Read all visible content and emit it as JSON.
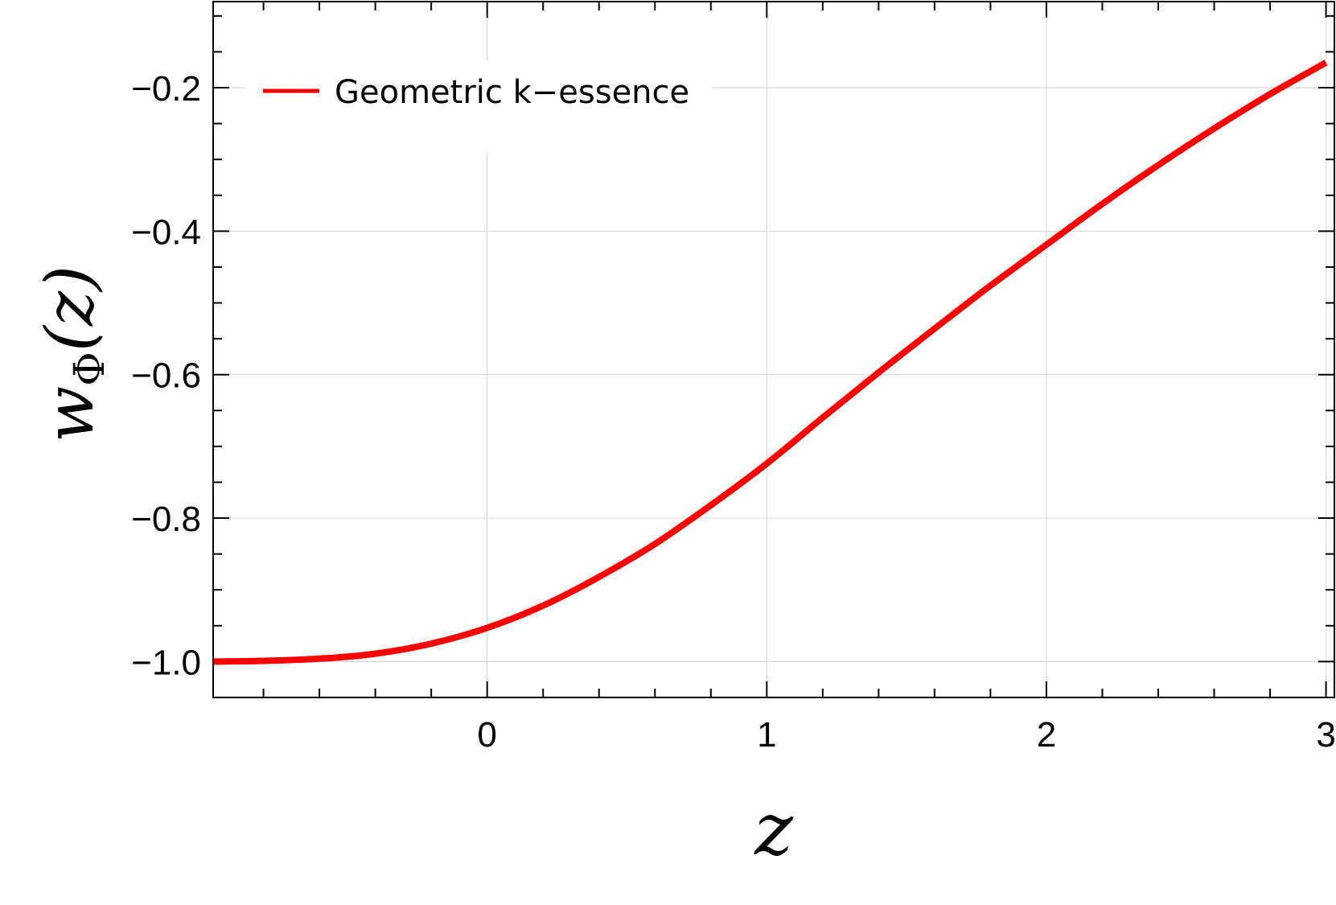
{
  "chart_data": {
    "type": "line",
    "xlabel": "z",
    "ylabel_main": "w",
    "ylabel_sub": "Φ",
    "ylabel_arg": "(z)",
    "xlim": [
      -0.98,
      3.03
    ],
    "ylim": [
      -1.05,
      -0.08
    ],
    "xticks": [
      0,
      1,
      2,
      3
    ],
    "xtick_labels": [
      "0",
      "1",
      "2",
      "3"
    ],
    "yticks": [
      -1.0,
      -0.8,
      -0.6,
      -0.4,
      -0.2
    ],
    "ytick_labels": [
      "−1.0",
      "−0.8",
      "−0.6",
      "−0.4",
      "−0.2"
    ],
    "x_minor_step": 0.2,
    "y_minor_step": 0.05,
    "grid": true,
    "legend_position": "top-left",
    "series": [
      {
        "name": "Geometric k−essence",
        "color": "#ff0000",
        "x": [
          -0.98,
          -0.8,
          -0.6,
          -0.4,
          -0.2,
          0.0,
          0.2,
          0.4,
          0.6,
          0.8,
          1.0,
          1.2,
          1.4,
          1.6,
          1.8,
          2.0,
          2.2,
          2.4,
          2.6,
          2.8,
          3.0
        ],
        "y": [
          -1.0,
          -0.999,
          -0.996,
          -0.989,
          -0.975,
          -0.953,
          -0.922,
          -0.882,
          -0.836,
          -0.782,
          -0.724,
          -0.66,
          -0.597,
          -0.536,
          -0.476,
          -0.419,
          -0.362,
          -0.308,
          -0.257,
          -0.209,
          -0.165
        ]
      }
    ]
  }
}
